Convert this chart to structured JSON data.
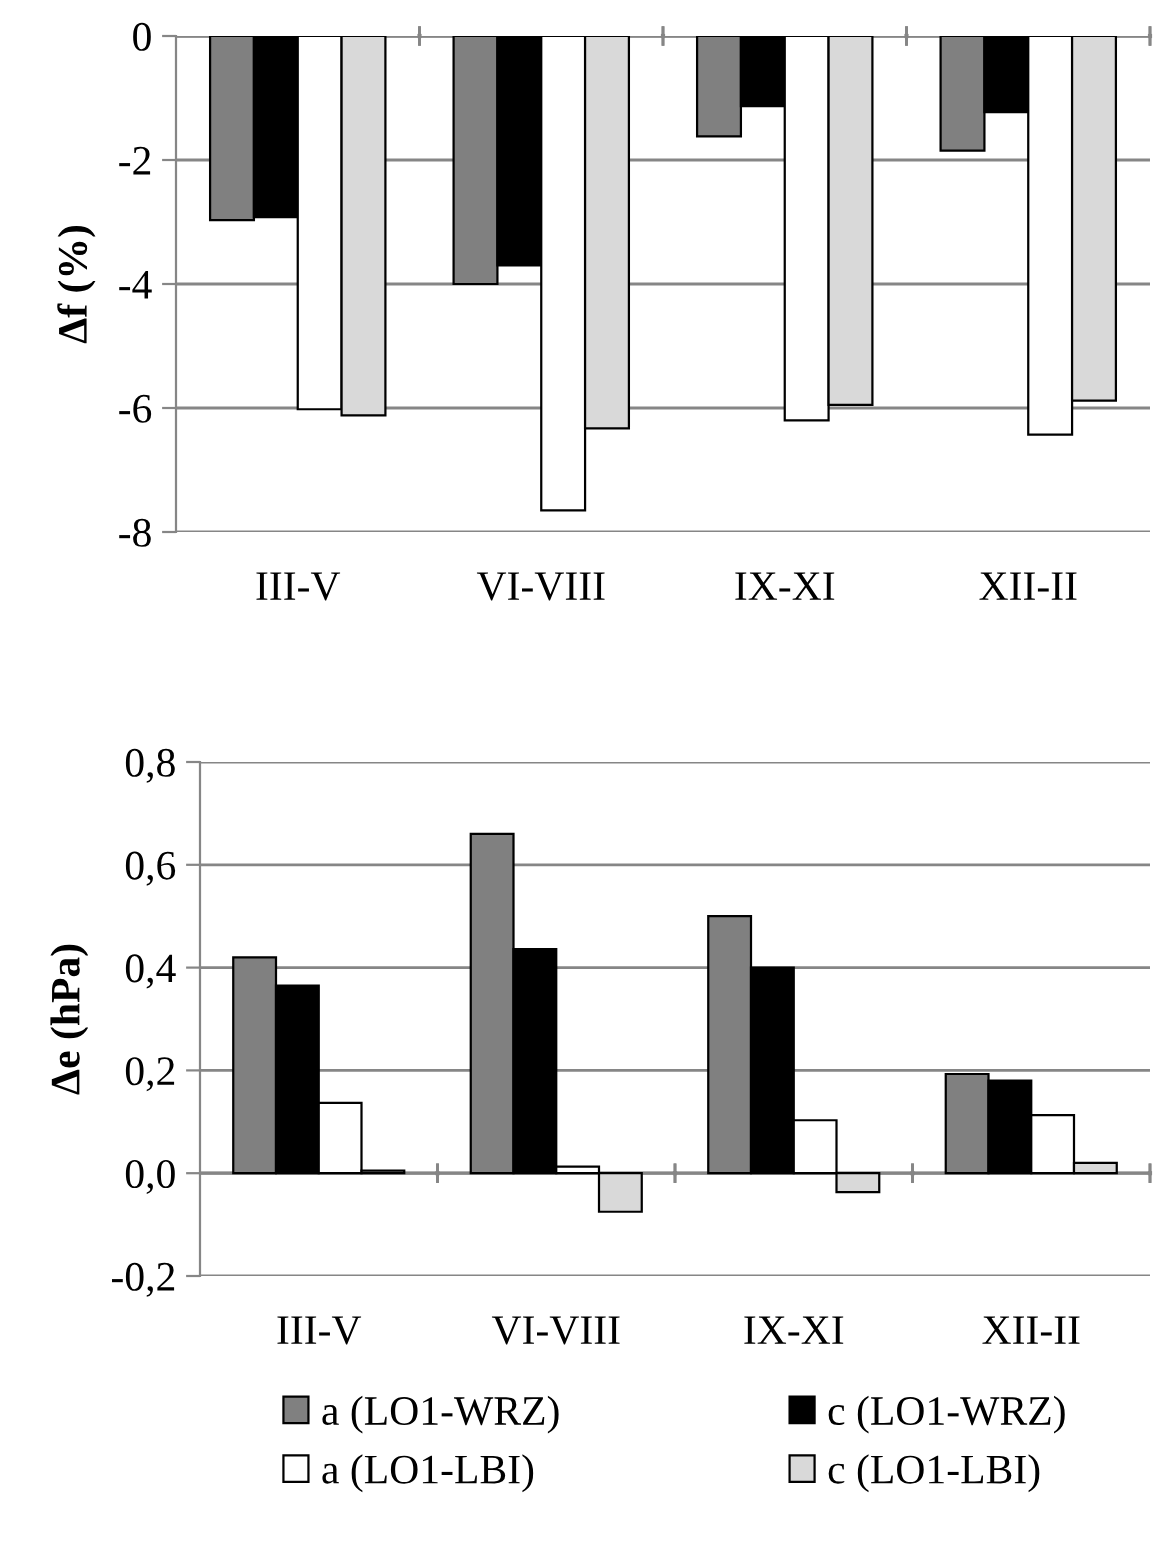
{
  "chart_data": [
    {
      "type": "bar",
      "ylabel": "Δf (%)",
      "categories": [
        "III-V",
        "VI-VIII",
        "IX-XI",
        "XII-II"
      ],
      "series": [
        {
          "color": "#808080",
          "values": [
            -2.97,
            -4.0,
            -1.62,
            -1.85
          ]
        },
        {
          "color": "#000000",
          "values": [
            -2.92,
            -3.7,
            -1.13,
            -1.23
          ]
        },
        {
          "color": "#ffffff",
          "values": [
            -6.02,
            -7.65,
            -6.2,
            -6.43
          ]
        },
        {
          "color": "#d9d9d9",
          "values": [
            -6.12,
            -6.33,
            -5.95,
            -5.88
          ]
        }
      ],
      "ylim": [
        -8,
        0
      ],
      "yticks": [
        -8,
        -6,
        -4,
        -2,
        0
      ],
      "grid": "y"
    },
    {
      "type": "bar",
      "ylabel": "Δe (hPa)",
      "categories": [
        "III-V",
        "VI-VIII",
        "IX-XI",
        "XII-II"
      ],
      "series": [
        {
          "name": "a (LO1-WRZ)",
          "color": "#808080",
          "values": [
            0.42,
            0.66,
            0.5,
            0.193
          ]
        },
        {
          "name": "c (LO1-WRZ)",
          "color": "#000000",
          "values": [
            0.365,
            0.436,
            0.4,
            0.18
          ]
        },
        {
          "name": "a (LO1-LBI)",
          "color": "#ffffff",
          "values": [
            0.137,
            0.013,
            0.103,
            0.113
          ]
        },
        {
          "name": "c (LO1-LBI)",
          "color": "#d9d9d9",
          "values": [
            0.005,
            -0.075,
            -0.037,
            0.02
          ]
        }
      ],
      "ylim": [
        -0.2,
        0.8
      ],
      "yticks": [
        {
          "value": -0.2,
          "label": "-0,2"
        },
        {
          "value": 0.0,
          "label": "0,0"
        },
        {
          "value": 0.2,
          "label": "0,2"
        },
        {
          "value": 0.4,
          "label": "0,4"
        },
        {
          "value": 0.6,
          "label": "0,6"
        },
        {
          "value": 0.8,
          "label": "0,8"
        }
      ],
      "grid": "y",
      "legend": "bottom"
    }
  ]
}
